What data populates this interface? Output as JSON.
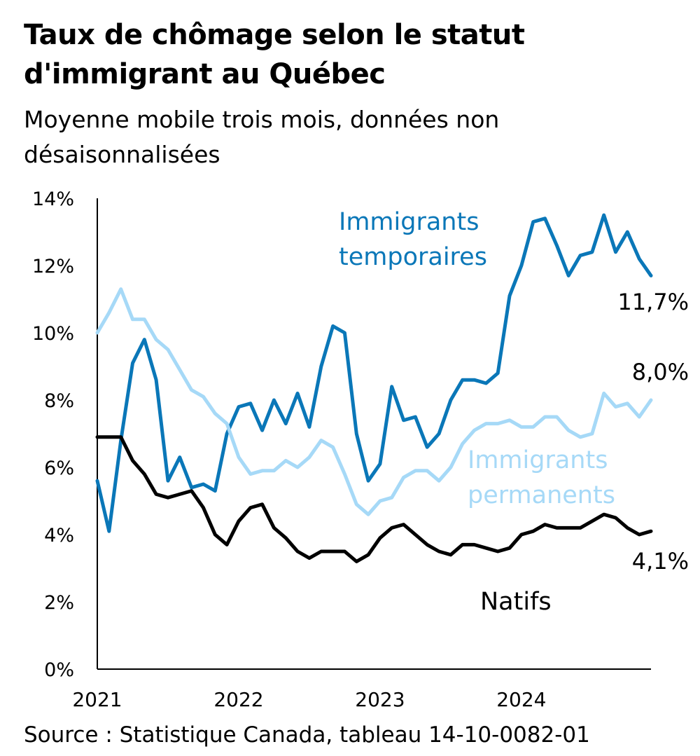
{
  "header": {
    "title_line1": "Taux de chômage selon le statut",
    "title_line2": "d'immigrant au Québec",
    "subtitle_line1": "Moyenne mobile trois mois, données non",
    "subtitle_line2": "désaisonnalisées"
  },
  "footer": {
    "source": "Source : Statistique Canada, tableau  14-10-0082-01"
  },
  "colors": {
    "temporaires": "#0a77b8",
    "permanents": "#a6d9f7",
    "natifs": "#000000",
    "axis": "#000000"
  },
  "chart_data": {
    "type": "line",
    "title": "Taux de chômage selon le statut d'immigrant au Québec",
    "subtitle": "Moyenne mobile trois mois, données non désaisonnalisées",
    "x_start": "2021-01",
    "frequency": "monthly",
    "xticks": [
      "2021",
      "2022",
      "2023",
      "2024"
    ],
    "yticks": [
      "0%",
      "2%",
      "4%",
      "6%",
      "8%",
      "10%",
      "12%",
      "14%"
    ],
    "ylim": [
      0,
      14
    ],
    "grid": false,
    "series": [
      {
        "name": "Immigrants temporaires",
        "label_line1": "Immigrants",
        "label_line2": "temporaires",
        "end_label": "11,7%",
        "color": "#0a77b8",
        "values": [
          5.6,
          4.1,
          6.8,
          9.1,
          9.8,
          8.6,
          5.6,
          6.3,
          5.4,
          5.5,
          5.3,
          7.0,
          7.8,
          7.9,
          7.1,
          8.0,
          7.3,
          8.2,
          7.2,
          9.0,
          10.2,
          10.0,
          7.0,
          5.6,
          6.1,
          8.4,
          7.4,
          7.5,
          6.6,
          7.0,
          8.0,
          8.6,
          8.6,
          8.5,
          8.8,
          11.1,
          12.0,
          13.3,
          13.4,
          12.6,
          11.7,
          12.3,
          12.4,
          13.5,
          12.4,
          13.0,
          12.2,
          11.7
        ]
      },
      {
        "name": "Immigrants permanents",
        "label_line1": "Immigrants",
        "label_line2": "permanents",
        "end_label": "8,0%",
        "color": "#a6d9f7",
        "values": [
          10.0,
          10.6,
          11.3,
          10.4,
          10.4,
          9.8,
          9.5,
          8.9,
          8.3,
          8.1,
          7.6,
          7.3,
          6.3,
          5.8,
          5.9,
          5.9,
          6.2,
          6.0,
          6.3,
          6.8,
          6.6,
          5.8,
          4.9,
          4.6,
          5.0,
          5.1,
          5.7,
          5.9,
          5.9,
          5.6,
          6.0,
          6.7,
          7.1,
          7.3,
          7.3,
          7.4,
          7.2,
          7.2,
          7.5,
          7.5,
          7.1,
          6.9,
          7.0,
          8.2,
          7.8,
          7.9,
          7.5,
          8.0
        ]
      },
      {
        "name": "Natifs",
        "label_line1": "Natifs",
        "end_label": "4,1%",
        "color": "#000000",
        "values": [
          6.9,
          6.9,
          6.9,
          6.2,
          5.8,
          5.2,
          5.1,
          5.2,
          5.3,
          4.8,
          4.0,
          3.7,
          4.4,
          4.8,
          4.9,
          4.2,
          3.9,
          3.5,
          3.3,
          3.5,
          3.5,
          3.5,
          3.2,
          3.4,
          3.9,
          4.2,
          4.3,
          4.0,
          3.7,
          3.5,
          3.4,
          3.7,
          3.7,
          3.6,
          3.5,
          3.6,
          4.0,
          4.1,
          4.3,
          4.2,
          4.2,
          4.2,
          4.4,
          4.6,
          4.5,
          4.2,
          4.0,
          4.1
        ]
      }
    ]
  }
}
